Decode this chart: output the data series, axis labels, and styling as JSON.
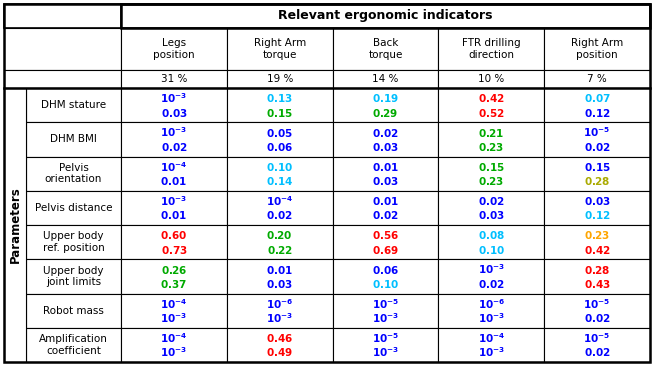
{
  "title": "Relevant ergonomic indicators",
  "col_headers": [
    "Legs\nposition",
    "Right Arm\ntorque",
    "Back\ntorque",
    "FTR drilling\ndirection",
    "Right Arm\nposition"
  ],
  "col_pct": [
    "31 %",
    "19 %",
    "14 %",
    "10 %",
    "7 %"
  ],
  "row_labels": [
    "DHM stature",
    "DHM BMI",
    "Pelvis\norientation",
    "Pelvis distance",
    "Upper body\nref. position",
    "Upper body\njoint limits",
    "Robot mass",
    "Amplification\ncoefficient"
  ],
  "cells": [
    [
      [
        [
          "$\\mathbf{10^{-3}}$",
          "blue"
        ],
        [
          "$\\mathbf{0.03}$",
          "blue"
        ]
      ],
      [
        [
          "$\\mathbf{0.13}$",
          "cyan"
        ],
        [
          "$\\mathbf{0.15}$",
          "green"
        ]
      ],
      [
        [
          "$\\mathbf{0.19}$",
          "cyan"
        ],
        [
          "$\\mathbf{0.29}$",
          "green"
        ]
      ],
      [
        [
          "$\\mathbf{0.42}$",
          "red"
        ],
        [
          "$\\mathbf{0.52}$",
          "red"
        ]
      ],
      [
        [
          "$\\mathbf{0.07}$",
          "cyan"
        ],
        [
          "$\\mathbf{0.12}$",
          "blue"
        ]
      ]
    ],
    [
      [
        [
          "$\\mathbf{10^{-3}}$",
          "blue"
        ],
        [
          "$\\mathbf{0.02}$",
          "blue"
        ]
      ],
      [
        [
          "$\\mathbf{0.05}$",
          "blue"
        ],
        [
          "$\\mathbf{0.06}$",
          "blue"
        ]
      ],
      [
        [
          "$\\mathbf{0.02}$",
          "blue"
        ],
        [
          "$\\mathbf{0.03}$",
          "blue"
        ]
      ],
      [
        [
          "$\\mathbf{0.21}$",
          "green"
        ],
        [
          "$\\mathbf{0.23}$",
          "green"
        ]
      ],
      [
        [
          "$\\mathbf{10^{-5}}$",
          "blue"
        ],
        [
          "$\\mathbf{0.02}$",
          "blue"
        ]
      ]
    ],
    [
      [
        [
          "$\\mathbf{10^{-4}}$",
          "blue"
        ],
        [
          "$\\mathbf{0.01}$",
          "blue"
        ]
      ],
      [
        [
          "$\\mathbf{0.10}$",
          "cyan"
        ],
        [
          "$\\mathbf{0.14}$",
          "cyan"
        ]
      ],
      [
        [
          "$\\mathbf{0.01}$",
          "blue"
        ],
        [
          "$\\mathbf{0.03}$",
          "blue"
        ]
      ],
      [
        [
          "$\\mathbf{0.15}$",
          "green"
        ],
        [
          "$\\mathbf{0.23}$",
          "green"
        ]
      ],
      [
        [
          "$\\mathbf{0.15}$",
          "blue"
        ],
        [
          "$\\mathbf{0.28}$",
          "yellow"
        ]
      ]
    ],
    [
      [
        [
          "$\\mathbf{10^{-3}}$",
          "blue"
        ],
        [
          "$\\mathbf{0.01}$",
          "blue"
        ]
      ],
      [
        [
          "$\\mathbf{10^{-4}}$",
          "blue"
        ],
        [
          "$\\mathbf{0.02}$",
          "blue"
        ]
      ],
      [
        [
          "$\\mathbf{0.01}$",
          "blue"
        ],
        [
          "$\\mathbf{0.02}$",
          "blue"
        ]
      ],
      [
        [
          "$\\mathbf{0.02}$",
          "blue"
        ],
        [
          "$\\mathbf{0.03}$",
          "blue"
        ]
      ],
      [
        [
          "$\\mathbf{0.03}$",
          "blue"
        ],
        [
          "$\\mathbf{0.12}$",
          "cyan"
        ]
      ]
    ],
    [
      [
        [
          "$\\mathbf{0.60}$",
          "red"
        ],
        [
          "$\\mathbf{0.73}$",
          "red"
        ]
      ],
      [
        [
          "$\\mathbf{0.20}$",
          "green"
        ],
        [
          "$\\mathbf{0.22}$",
          "green"
        ]
      ],
      [
        [
          "$\\mathbf{0.56}$",
          "red"
        ],
        [
          "$\\mathbf{0.69}$",
          "red"
        ]
      ],
      [
        [
          "$\\mathbf{0.08}$",
          "cyan"
        ],
        [
          "$\\mathbf{0.10}$",
          "cyan"
        ]
      ],
      [
        [
          "$\\mathbf{0.23}$",
          "orange"
        ],
        [
          "$\\mathbf{0.42}$",
          "red"
        ]
      ]
    ],
    [
      [
        [
          "$\\mathbf{0.26}$",
          "green"
        ],
        [
          "$\\mathbf{0.37}$",
          "green"
        ]
      ],
      [
        [
          "$\\mathbf{0.01}$",
          "blue"
        ],
        [
          "$\\mathbf{0.03}$",
          "blue"
        ]
      ],
      [
        [
          "$\\mathbf{0.06}$",
          "blue"
        ],
        [
          "$\\mathbf{0.10}$",
          "cyan"
        ]
      ],
      [
        [
          "$\\mathbf{10^{-3}}$",
          "blue"
        ],
        [
          "$\\mathbf{0.02}$",
          "blue"
        ]
      ],
      [
        [
          "$\\mathbf{0.28}$",
          "red"
        ],
        [
          "$\\mathbf{0.43}$",
          "red"
        ]
      ]
    ],
    [
      [
        [
          "$\\mathbf{10^{-4}}$",
          "blue"
        ],
        [
          "$\\mathbf{10^{-3}}$",
          "blue"
        ]
      ],
      [
        [
          "$\\mathbf{10^{-6}}$",
          "blue"
        ],
        [
          "$\\mathbf{10^{-3}}$",
          "blue"
        ]
      ],
      [
        [
          "$\\mathbf{10^{-5}}$",
          "blue"
        ],
        [
          "$\\mathbf{10^{-3}}$",
          "blue"
        ]
      ],
      [
        [
          "$\\mathbf{10^{-6}}$",
          "blue"
        ],
        [
          "$\\mathbf{10^{-3}}$",
          "blue"
        ]
      ],
      [
        [
          "$\\mathbf{10^{-5}}$",
          "blue"
        ],
        [
          "$\\mathbf{0.02}$",
          "blue"
        ]
      ]
    ],
    [
      [
        [
          "$\\mathbf{10^{-4}}$",
          "blue"
        ],
        [
          "$\\mathbf{10^{-3}}$",
          "blue"
        ]
      ],
      [
        [
          "$\\mathbf{0.46}$",
          "red"
        ],
        [
          "$\\mathbf{0.49}$",
          "red"
        ]
      ],
      [
        [
          "$\\mathbf{10^{-5}}$",
          "blue"
        ],
        [
          "$\\mathbf{10^{-3}}$",
          "blue"
        ]
      ],
      [
        [
          "$\\mathbf{10^{-4}}$",
          "blue"
        ],
        [
          "$\\mathbf{10^{-3}}$",
          "blue"
        ]
      ],
      [
        [
          "$\\mathbf{10^{-5}}$",
          "blue"
        ],
        [
          "$\\mathbf{0.02}$",
          "blue"
        ]
      ]
    ]
  ],
  "color_map": {
    "blue": "#0000FF",
    "cyan": "#00BFFF",
    "green": "#00AA00",
    "red": "#FF0000",
    "orange": "#FFA500",
    "yellow": "#AAAA00"
  },
  "parameters_label": "Parameters"
}
